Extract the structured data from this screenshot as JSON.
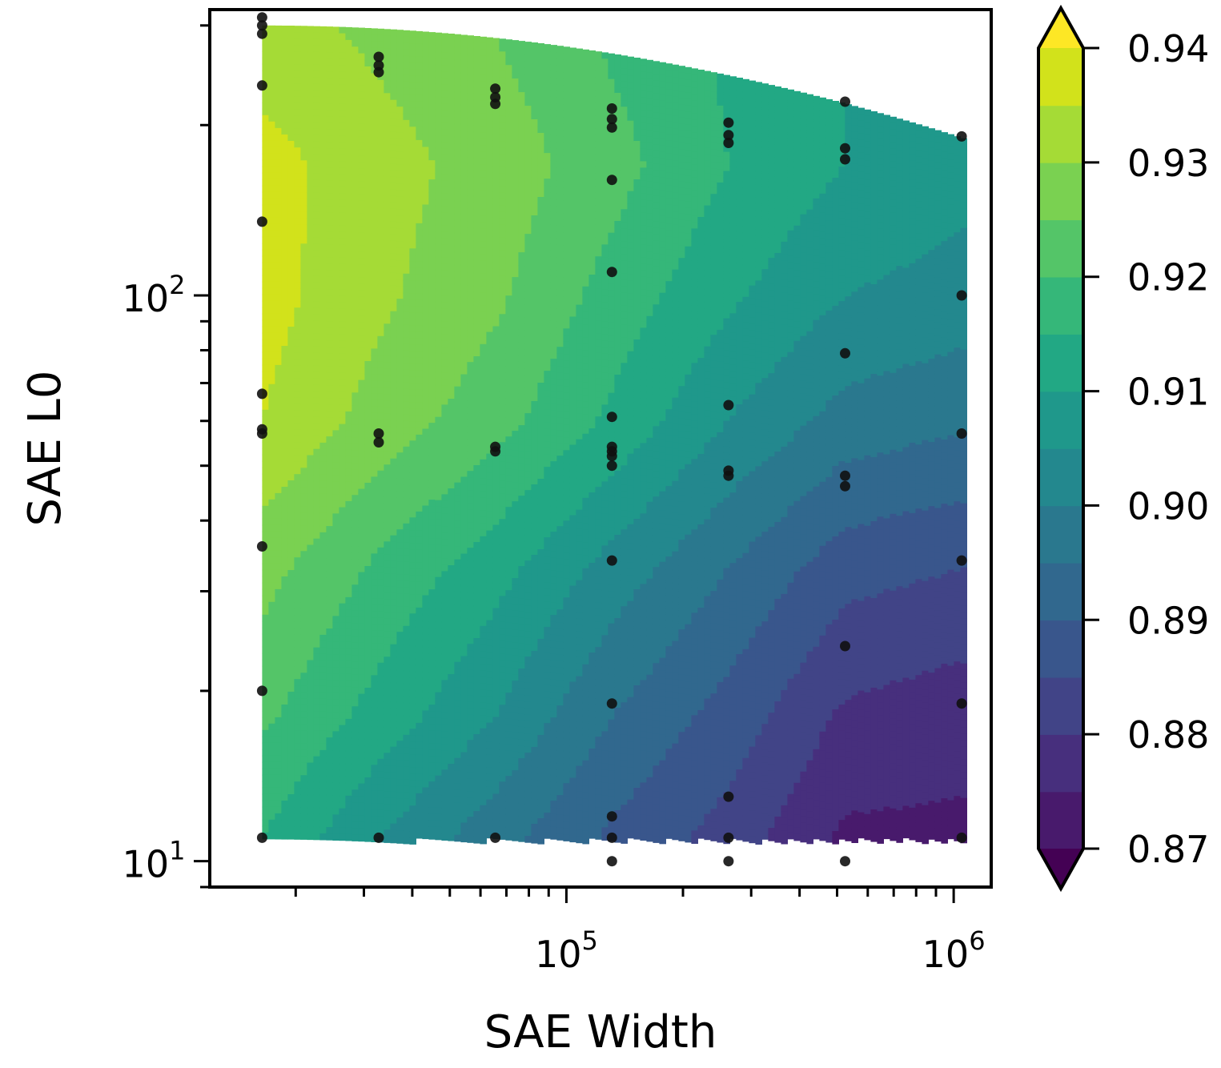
{
  "chart_data": {
    "type": "contour",
    "title": "",
    "xlabel": "SAE Width",
    "ylabel": "SAE L0",
    "xscale": "log",
    "yscale": "log",
    "xlim": [
      12000,
      1250000
    ],
    "ylim": [
      9,
      320
    ],
    "x_tick_labels": [
      {
        "base": "10",
        "exp": "5",
        "value": 100000
      },
      {
        "base": "10",
        "exp": "6",
        "value": 1000000
      }
    ],
    "y_tick_labels": [
      {
        "base": "10",
        "exp": "1",
        "value": 10
      },
      {
        "base": "10",
        "exp": "2",
        "value": 100
      }
    ],
    "colorbar": {
      "levels": [
        0.87,
        0.875,
        0.88,
        0.885,
        0.89,
        0.895,
        0.9,
        0.905,
        0.91,
        0.915,
        0.92,
        0.925,
        0.93,
        0.935,
        0.94
      ],
      "tick_labels": [
        "0.87",
        "0.88",
        "0.89",
        "0.90",
        "0.91",
        "0.92",
        "0.93",
        "0.94"
      ],
      "tick_values": [
        0.87,
        0.88,
        0.89,
        0.9,
        0.91,
        0.92,
        0.93,
        0.94
      ],
      "colors": [
        "#481a6c",
        "#472f7d",
        "#414487",
        "#39568c",
        "#31688e",
        "#2a788e",
        "#23888e",
        "#1f988b",
        "#22a884",
        "#35b779",
        "#54c568",
        "#7ad151",
        "#a5db36",
        "#d2e21b"
      ],
      "under_color": "#440154",
      "over_color": "#fde725",
      "extend": "both"
    },
    "grid_widths": [
      16384,
      32768,
      65536,
      131072,
      262144,
      524288,
      1048576
    ],
    "grid_l0": [
      11,
      18,
      33,
      60,
      100,
      170,
      290
    ],
    "grid_values": [
      [
        0.915,
        0.905,
        0.897,
        0.889,
        0.883,
        0.874,
        0.874
      ],
      [
        0.921,
        0.913,
        0.905,
        0.895,
        0.888,
        0.879,
        0.877
      ],
      [
        0.927,
        0.919,
        0.912,
        0.903,
        0.895,
        0.887,
        0.885
      ],
      [
        0.935,
        0.928,
        0.922,
        0.914,
        0.905,
        0.898,
        0.896
      ],
      [
        0.937,
        0.931,
        0.926,
        0.918,
        0.911,
        0.905,
        0.903
      ],
      [
        0.937,
        0.932,
        0.928,
        0.922,
        0.915,
        0.91,
        0.907
      ],
      [
        0.932,
        0.929,
        0.925,
        0.919,
        0.914,
        0.91,
        0.908
      ]
    ],
    "data_points": [
      {
        "x": 16384,
        "y": 310
      },
      {
        "x": 16384,
        "y": 300
      },
      {
        "x": 16384,
        "y": 290
      },
      {
        "x": 16384,
        "y": 235
      },
      {
        "x": 16384,
        "y": 135
      },
      {
        "x": 16384,
        "y": 67
      },
      {
        "x": 16384,
        "y": 58
      },
      {
        "x": 16384,
        "y": 57
      },
      {
        "x": 16384,
        "y": 36
      },
      {
        "x": 16384,
        "y": 20
      },
      {
        "x": 16384,
        "y": 11
      },
      {
        "x": 32768,
        "y": 264
      },
      {
        "x": 32768,
        "y": 255
      },
      {
        "x": 32768,
        "y": 248
      },
      {
        "x": 32768,
        "y": 57
      },
      {
        "x": 32768,
        "y": 55
      },
      {
        "x": 32768,
        "y": 11
      },
      {
        "x": 65536,
        "y": 232
      },
      {
        "x": 65536,
        "y": 224
      },
      {
        "x": 65536,
        "y": 218
      },
      {
        "x": 65536,
        "y": 54
      },
      {
        "x": 65536,
        "y": 53
      },
      {
        "x": 65536,
        "y": 11
      },
      {
        "x": 131072,
        "y": 214
      },
      {
        "x": 131072,
        "y": 205
      },
      {
        "x": 131072,
        "y": 198
      },
      {
        "x": 131072,
        "y": 160
      },
      {
        "x": 131072,
        "y": 110
      },
      {
        "x": 131072,
        "y": 61
      },
      {
        "x": 131072,
        "y": 54
      },
      {
        "x": 131072,
        "y": 53
      },
      {
        "x": 131072,
        "y": 52
      },
      {
        "x": 131072,
        "y": 50
      },
      {
        "x": 131072,
        "y": 34
      },
      {
        "x": 131072,
        "y": 19
      },
      {
        "x": 131072,
        "y": 12
      },
      {
        "x": 131072,
        "y": 11
      },
      {
        "x": 131072,
        "y": 10
      },
      {
        "x": 262144,
        "y": 202
      },
      {
        "x": 262144,
        "y": 192
      },
      {
        "x": 262144,
        "y": 186
      },
      {
        "x": 262144,
        "y": 64
      },
      {
        "x": 262144,
        "y": 49
      },
      {
        "x": 262144,
        "y": 48
      },
      {
        "x": 262144,
        "y": 13
      },
      {
        "x": 262144,
        "y": 11
      },
      {
        "x": 262144,
        "y": 10
      },
      {
        "x": 524288,
        "y": 220
      },
      {
        "x": 524288,
        "y": 182
      },
      {
        "x": 524288,
        "y": 174
      },
      {
        "x": 524288,
        "y": 79
      },
      {
        "x": 524288,
        "y": 48
      },
      {
        "x": 524288,
        "y": 46
      },
      {
        "x": 524288,
        "y": 24
      },
      {
        "x": 524288,
        "y": 10
      },
      {
        "x": 1048576,
        "y": 191
      },
      {
        "x": 1048576,
        "y": 100
      },
      {
        "x": 1048576,
        "y": 57
      },
      {
        "x": 1048576,
        "y": 34
      },
      {
        "x": 1048576,
        "y": 19
      },
      {
        "x": 1048576,
        "y": 11
      }
    ],
    "point_color": "#111111"
  }
}
